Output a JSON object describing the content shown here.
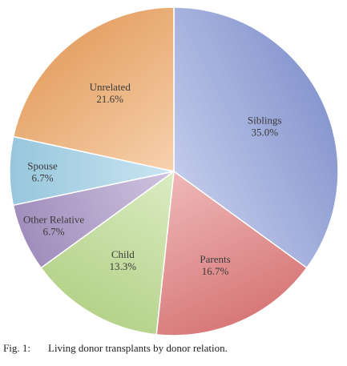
{
  "chart_data": {
    "type": "pie",
    "title": "",
    "start_angle_deg": 0,
    "direction": "clockwise",
    "slices": [
      {
        "name": "Siblings",
        "value": 35.0,
        "label": "35.0%",
        "color": "#8f9fda"
      },
      {
        "name": "Parents",
        "value": 16.7,
        "label": "16.7%",
        "color": "#e27e7e"
      },
      {
        "name": "Child",
        "value": 13.3,
        "label": "13.3%",
        "color": "#bedd91"
      },
      {
        "name": "Other Relative",
        "value": 6.7,
        "label": "6.7%",
        "color": "#a894c6"
      },
      {
        "name": "Spouse",
        "value": 6.7,
        "label": "6.7%",
        "color": "#9fd0e8"
      },
      {
        "name": "Unrelated",
        "value": 21.6,
        "label": "21.6%",
        "color": "#f1ac6c"
      }
    ],
    "legend": "none",
    "data_labels": "inside"
  },
  "caption": {
    "fig_number": "Fig. 1:",
    "text": "Living donor transplants by donor relation."
  }
}
